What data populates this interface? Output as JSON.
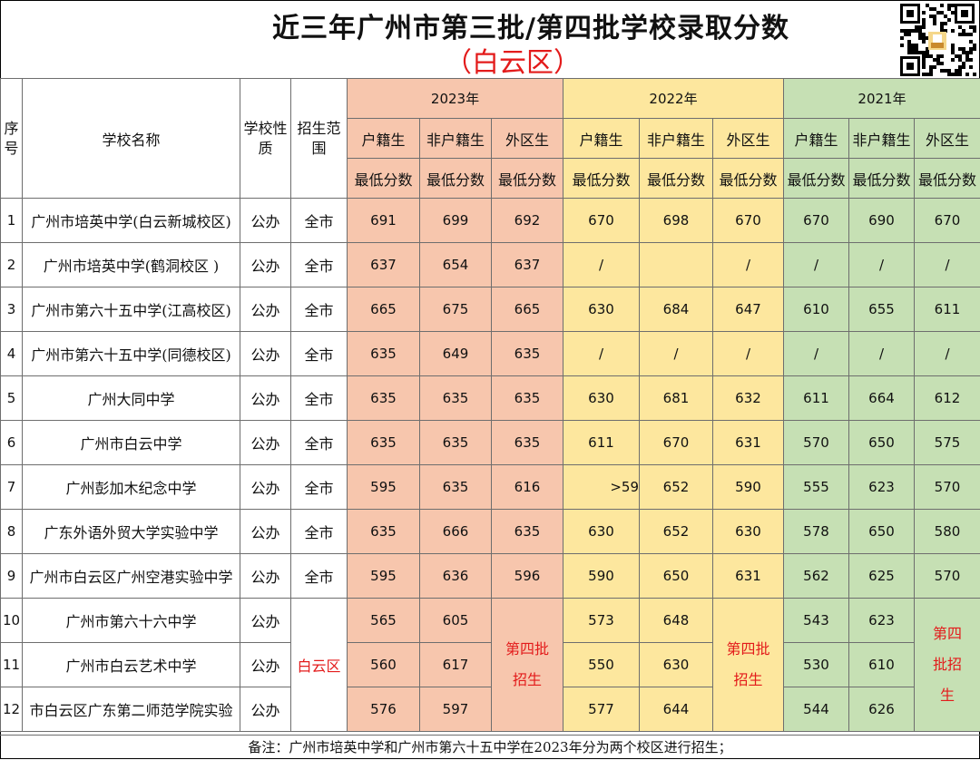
{
  "title": "近三年广州市第三批/第四批学校录取分数",
  "subtitle": "（白云区）",
  "qr_icon": "qr-code-icon",
  "headers": {
    "index": "序号",
    "school_name": "学校名称",
    "school_type": "学校性质",
    "scope": "招生范围",
    "years": [
      "2023年",
      "2022年",
      "2021年"
    ],
    "categories": [
      "户籍生",
      "非户籍生",
      "外区生"
    ],
    "min_score": "最低分数"
  },
  "rows": [
    {
      "idx": "1",
      "name": "广州市培英中学(白云新城校区)",
      "type": "公办",
      "scope": "全市",
      "s2023": [
        "691",
        "699",
        "692"
      ],
      "s2022": [
        "670",
        "698",
        "670"
      ],
      "s2021": [
        "670",
        "690",
        "670"
      ]
    },
    {
      "idx": "2",
      "name": "广州市培英中学(鹤洞校区 )",
      "type": "公办",
      "scope": "全市",
      "s2023": [
        "637",
        "654",
        "637"
      ],
      "s2022": [
        "/",
        "",
        "/"
      ],
      "s2021": [
        "/",
        "/",
        "/"
      ]
    },
    {
      "idx": "3",
      "name": "广州市第六十五中学(江高校区)",
      "type": "公办",
      "scope": "全市",
      "s2023": [
        "665",
        "675",
        "665"
      ],
      "s2022": [
        "630",
        "684",
        "647"
      ],
      "s2021": [
        "610",
        "655",
        "611"
      ]
    },
    {
      "idx": "4",
      "name": "广州市第六十五中学(同德校区)",
      "type": "公办",
      "scope": "全市",
      "s2023": [
        "635",
        "649",
        "635"
      ],
      "s2022": [
        "/",
        "/",
        "/"
      ],
      "s2021": [
        "/",
        "/",
        "/"
      ]
    },
    {
      "idx": "5",
      "name": "广州大同中学",
      "type": "公办",
      "scope": "全市",
      "s2023": [
        "635",
        "635",
        "635"
      ],
      "s2022": [
        "630",
        "681",
        "632"
      ],
      "s2021": [
        "611",
        "664",
        "612"
      ]
    },
    {
      "idx": "6",
      "name": "广州市白云中学",
      "type": "公办",
      "scope": "全市",
      "s2023": [
        "635",
        "635",
        "635"
      ],
      "s2022": [
        "611",
        "670",
        "631"
      ],
      "s2021": [
        "570",
        "650",
        "575"
      ]
    },
    {
      "idx": "7",
      "name": "广州彭加木纪念中学",
      "type": "公办",
      "scope": "全市",
      "s2023": [
        "595",
        "635",
        "616"
      ],
      "s2022": [
        ">59",
        "652",
        "590"
      ],
      "s2021": [
        "555",
        "623",
        "570"
      ]
    },
    {
      "idx": "8",
      "name": "广东外语外贸大学实验中学",
      "type": "公办",
      "scope": "全市",
      "s2023": [
        "635",
        "666",
        "635"
      ],
      "s2022": [
        "630",
        "652",
        "630"
      ],
      "s2021": [
        "578",
        "650",
        "580"
      ]
    },
    {
      "idx": "9",
      "name": "广州市白云区广州空港实验中学",
      "type": "公办",
      "scope": "全市",
      "s2023": [
        "595",
        "636",
        "596"
      ],
      "s2022": [
        "590",
        "650",
        "631"
      ],
      "s2021": [
        "562",
        "625",
        "570"
      ]
    },
    {
      "idx": "10",
      "name": "广州市第六十六中学",
      "type": "公办",
      "s2023": [
        "565",
        "605"
      ],
      "s2022": [
        "573",
        "648"
      ],
      "s2021": [
        "543",
        "623"
      ]
    },
    {
      "idx": "11",
      "name": "广州市白云艺术中学",
      "type": "公办",
      "s2023": [
        "560",
        "617"
      ],
      "s2022": [
        "550",
        "630"
      ],
      "s2021": [
        "530",
        "610"
      ]
    },
    {
      "idx": "12",
      "name": "市白云区广东第二师范学院实验",
      "type": "公办",
      "s2023": [
        "576",
        "597"
      ],
      "s2022": [
        "577",
        "644"
      ],
      "s2021": [
        "544",
        "626"
      ]
    }
  ],
  "merged": {
    "scope_baiyun": "白云区",
    "batch4_2023": "第四批招生",
    "batch4_2022": "第四批招生",
    "batch4_2021": "第四批招生"
  },
  "note": "备注：广州市培英中学和广州市第六十五中学在2023年分为两个校区进行招生；",
  "colors": {
    "y2023": "#f7c6ad",
    "y2022": "#fde79e",
    "y2021": "#c6e0b4",
    "highlight_red": "#e31b1b"
  }
}
